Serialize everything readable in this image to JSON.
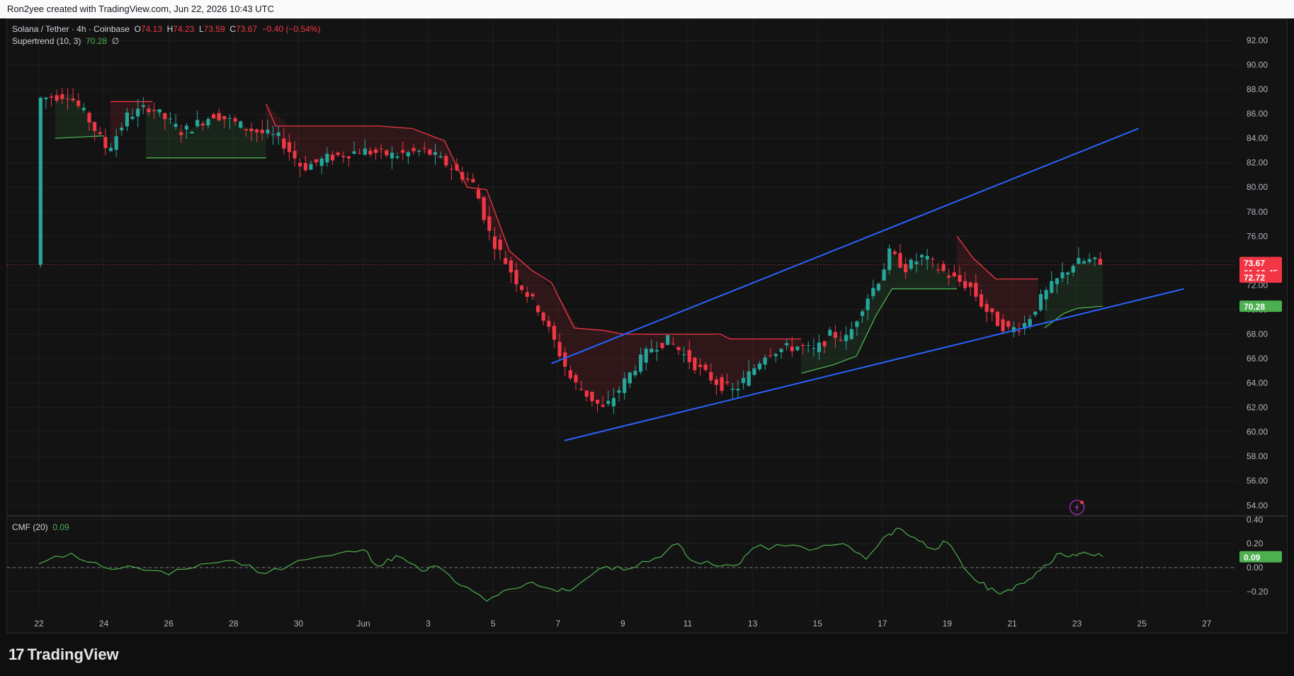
{
  "topbar": {
    "caption": "Ron2yee created with TradingView.com, Jun 22, 2026 10:43 UTC"
  },
  "legend": {
    "symbol": "Solana / Tether · 4h · Coinbase",
    "o_label": "O",
    "o": "74.13",
    "h_label": "H",
    "h": "74.23",
    "l_label": "L",
    "l": "73.59",
    "c_label": "C",
    "c": "73.67",
    "change": "−0.40 (−0.54%)",
    "supertrend_label": "Supertrend (10, 3)",
    "supertrend_value": "70.28",
    "supertrend_extra": "∅",
    "cmf_label": "CMF (20)",
    "cmf_value": "0.09"
  },
  "badges": {
    "price": "73.67",
    "countdown": "01:16:45",
    "level": "72.72",
    "supertrend": "70.28",
    "cmf": "0.09"
  },
  "footer": {
    "brand": "TradingView"
  },
  "colors": {
    "up": "#26a69a",
    "down": "#f23645",
    "supertrend_up": "#4caf50",
    "supertrend_down": "#f23645",
    "trendline": "#2962ff",
    "cmf": "#4caf50",
    "background": "#131313",
    "grid": "#1f1f1f"
  },
  "chart_data": [
    {
      "type": "candlestick",
      "title": "Solana / Tether · 4h · Coinbase",
      "ylim": [
        53,
        93
      ],
      "y_ticks": [
        92,
        90,
        88,
        86,
        84,
        82,
        80,
        78,
        76,
        74,
        72,
        70,
        68,
        66,
        64,
        62,
        60,
        58,
        56,
        54
      ],
      "x_labels": [
        "22",
        "24",
        "26",
        "28",
        "30",
        "Jun",
        "3",
        "5",
        "7",
        "9",
        "11",
        "13",
        "15",
        "17",
        "19",
        "21",
        "23",
        "25",
        "27"
      ],
      "x_domain_days": [
        0,
        37.5
      ],
      "last_close": 73.67,
      "price_path": [
        [
          0,
          87.2
        ],
        [
          1.0,
          87.6
        ],
        [
          1.6,
          85.6
        ],
        [
          2.2,
          83.0
        ],
        [
          2.8,
          85.8
        ],
        [
          3.5,
          86.6
        ],
        [
          4.5,
          84.5
        ],
        [
          5.5,
          86.0
        ],
        [
          6.5,
          84.8
        ],
        [
          7.5,
          84.0
        ],
        [
          8.2,
          81.6
        ],
        [
          9.0,
          82.4
        ],
        [
          10.0,
          83.0
        ],
        [
          11.0,
          82.6
        ],
        [
          12.0,
          83.0
        ],
        [
          12.7,
          81.8
        ],
        [
          13.5,
          80.2
        ],
        [
          14.0,
          76.0
        ],
        [
          14.8,
          72.4
        ],
        [
          15.5,
          70.0
        ],
        [
          16.0,
          67.2
        ],
        [
          16.5,
          64.2
        ],
        [
          17.0,
          63.0
        ],
        [
          17.5,
          61.8
        ],
        [
          18.0,
          63.6
        ],
        [
          18.5,
          65.5
        ],
        [
          19.0,
          67.0
        ],
        [
          19.5,
          67.5
        ],
        [
          20.0,
          66.2
        ],
        [
          20.5,
          65.0
        ],
        [
          21.0,
          64.0
        ],
        [
          21.5,
          63.3
        ],
        [
          22.0,
          64.8
        ],
        [
          22.5,
          66.5
        ],
        [
          23.0,
          66.8
        ],
        [
          23.5,
          67.0
        ],
        [
          24.0,
          66.6
        ],
        [
          24.5,
          68.0
        ],
        [
          25.0,
          67.6
        ],
        [
          25.5,
          70.5
        ],
        [
          26.0,
          72.6
        ],
        [
          26.3,
          74.6
        ],
        [
          26.8,
          73.4
        ],
        [
          27.3,
          74.3
        ],
        [
          27.8,
          73.4
        ],
        [
          28.3,
          72.5
        ],
        [
          28.8,
          71.8
        ],
        [
          29.2,
          70.2
        ],
        [
          29.6,
          69.0
        ],
        [
          30.0,
          68.3
        ],
        [
          30.5,
          68.9
        ],
        [
          31.0,
          71.0
        ],
        [
          31.5,
          72.5
        ],
        [
          32.0,
          73.8
        ],
        [
          32.5,
          74.0
        ],
        [
          32.8,
          73.67
        ]
      ],
      "supertrend": {
        "name": "Supertrend (10, 3)",
        "value": 70.28,
        "segments": [
          {
            "dir": "up",
            "points": [
              [
                0.5,
                84.0
              ],
              [
                2.0,
                84.2
              ]
            ]
          },
          {
            "dir": "down",
            "points": [
              [
                2.2,
                87.0
              ],
              [
                3.5,
                87.0
              ]
            ]
          },
          {
            "dir": "up",
            "points": [
              [
                3.3,
                82.4
              ],
              [
                7.0,
                82.4
              ]
            ]
          },
          {
            "dir": "down",
            "points": [
              [
                7.0,
                86.8
              ],
              [
                7.3,
                85.0
              ],
              [
                10.5,
                85.0
              ],
              [
                11.5,
                84.8
              ],
              [
                12.5,
                83.8
              ],
              [
                13.2,
                80.0
              ],
              [
                13.8,
                79.8
              ],
              [
                14.5,
                74.8
              ],
              [
                15.2,
                73.2
              ],
              [
                15.8,
                72.2
              ],
              [
                16.5,
                68.5
              ],
              [
                17.4,
                68.3
              ],
              [
                18.0,
                68.0
              ],
              [
                21.0,
                68.0
              ],
              [
                21.3,
                67.6
              ],
              [
                23.5,
                67.6
              ]
            ]
          },
          {
            "dir": "up",
            "points": [
              [
                23.5,
                64.8
              ],
              [
                24.5,
                65.5
              ],
              [
                25.2,
                66.2
              ],
              [
                25.8,
                69.5
              ],
              [
                26.3,
                71.7
              ],
              [
                28.3,
                71.7
              ]
            ]
          },
          {
            "dir": "down",
            "points": [
              [
                28.3,
                76.0
              ],
              [
                28.8,
                74.2
              ],
              [
                29.5,
                72.5
              ],
              [
                30.8,
                72.5
              ]
            ]
          },
          {
            "dir": "up",
            "points": [
              [
                31.0,
                68.5
              ],
              [
                31.6,
                69.7
              ],
              [
                32.0,
                70.1
              ],
              [
                32.8,
                70.28
              ]
            ]
          }
        ]
      },
      "trendlines": [
        {
          "name": "upper-channel",
          "from": [
            15.8,
            65.6
          ],
          "to": [
            33.9,
            84.8
          ]
        },
        {
          "name": "lower-channel",
          "from": [
            16.2,
            59.3
          ],
          "to": [
            35.3,
            71.7
          ]
        }
      ],
      "dashed_level": 73.67
    },
    {
      "type": "line",
      "title": "CMF (20)",
      "ylim": [
        -0.33,
        0.42
      ],
      "y_ticks": [
        0.4,
        0.2,
        0.0,
        -0.2
      ],
      "last_value": 0.09,
      "points": [
        [
          0,
          0.03
        ],
        [
          1,
          0.12
        ],
        [
          2,
          0.0
        ],
        [
          3,
          0.0
        ],
        [
          4,
          -0.06
        ],
        [
          5,
          0.03
        ],
        [
          6,
          0.06
        ],
        [
          7,
          -0.05
        ],
        [
          8,
          0.06
        ],
        [
          9,
          0.1
        ],
        [
          10,
          0.15
        ],
        [
          10.5,
          0.01
        ],
        [
          11,
          0.1
        ],
        [
          11.8,
          -0.03
        ],
        [
          12.3,
          0.01
        ],
        [
          13.0,
          -0.15
        ],
        [
          13.8,
          -0.28
        ],
        [
          14.5,
          -0.18
        ],
        [
          15.2,
          -0.12
        ],
        [
          16.0,
          -0.2
        ],
        [
          16.5,
          -0.17
        ],
        [
          17.5,
          0.01
        ],
        [
          18.2,
          -0.01
        ],
        [
          19.0,
          0.08
        ],
        [
          19.7,
          0.2
        ],
        [
          20.2,
          0.05
        ],
        [
          21.0,
          0.01
        ],
        [
          21.5,
          0.02
        ],
        [
          22.0,
          0.16
        ],
        [
          23.0,
          0.18
        ],
        [
          24.0,
          0.16
        ],
        [
          24.8,
          0.2
        ],
        [
          25.5,
          0.07
        ],
        [
          26.2,
          0.28
        ],
        [
          26.5,
          0.33
        ],
        [
          27.0,
          0.25
        ],
        [
          27.5,
          0.16
        ],
        [
          28.0,
          0.21
        ],
        [
          28.5,
          0.0
        ],
        [
          29.0,
          -0.13
        ],
        [
          29.5,
          -0.2
        ],
        [
          30.0,
          -0.19
        ],
        [
          30.5,
          -0.1
        ],
        [
          31.0,
          0.02
        ],
        [
          31.5,
          0.12
        ],
        [
          32.0,
          0.1
        ],
        [
          32.3,
          0.12
        ],
        [
          32.8,
          0.09
        ]
      ]
    }
  ]
}
